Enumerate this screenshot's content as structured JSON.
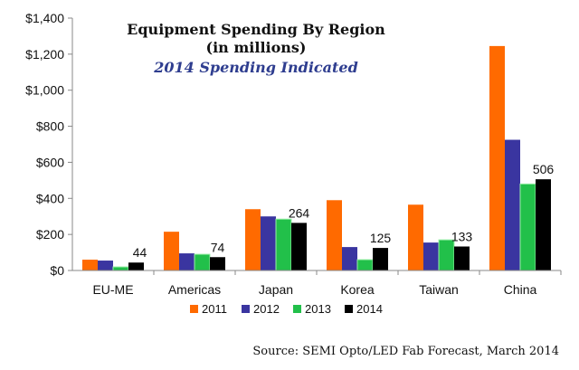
{
  "chart_data": {
    "type": "bar",
    "title": "Equipment Spending By Region",
    "title_line2": "(in millions)",
    "subtitle": "2014 Spending Indicated",
    "xlabel": "",
    "ylabel": "",
    "ylim": [
      0,
      1400
    ],
    "y_ticks": [
      "$0",
      "$200",
      "$400",
      "$600",
      "$800",
      "$1,000",
      "$1,200",
      "$1,400"
    ],
    "categories": [
      "EU-ME",
      "Americas",
      "Japan",
      "Korea",
      "Taiwan",
      "China"
    ],
    "series": [
      {
        "name": "2011",
        "color": "#FF6A00",
        "values": [
          60,
          215,
          340,
          390,
          365,
          1245
        ]
      },
      {
        "name": "2012",
        "color": "#3A35A0",
        "values": [
          55,
          95,
          300,
          130,
          155,
          725
        ]
      },
      {
        "name": "2013",
        "color": "#22C04A",
        "values": [
          20,
          90,
          285,
          60,
          170,
          480
        ]
      },
      {
        "name": "2014",
        "color": "#000000",
        "values": [
          44,
          74,
          264,
          125,
          133,
          506
        ]
      }
    ],
    "data_labels_2014": [
      "44",
      "74",
      "264",
      "125",
      "133",
      "506"
    ],
    "legend_position": "bottom-center",
    "grid": false,
    "subtitle_color": "#2E3D8F",
    "source": "Source: SEMI Opto/LED Fab Forecast, March 2014"
  }
}
